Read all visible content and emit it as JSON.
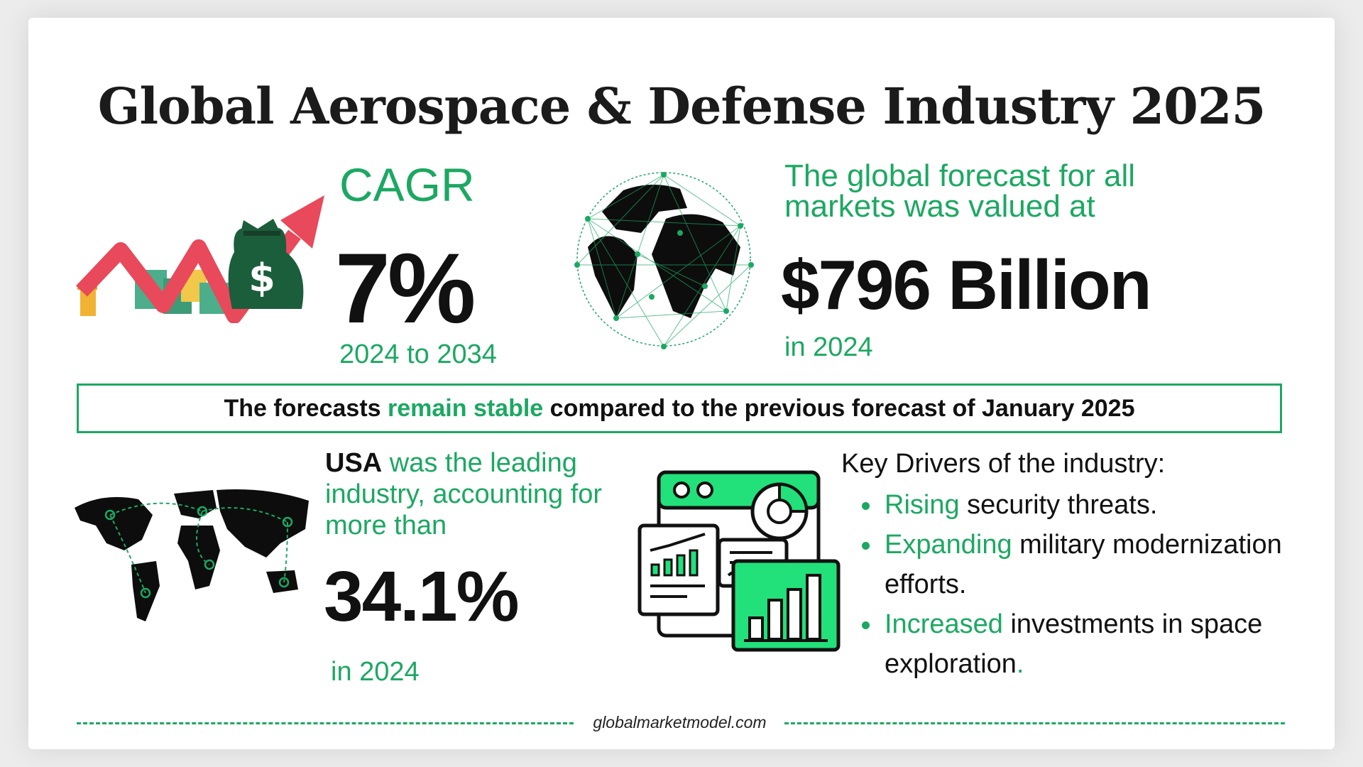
{
  "title": "Global Aerospace & Defense Industry 2025",
  "cagr": {
    "label": "CAGR",
    "value": "7%",
    "period": "2024 to 2034"
  },
  "market": {
    "text": "The global forecast for all markets was valued at",
    "value": "$796 Billion",
    "year": "in 2024"
  },
  "banner": {
    "prefix": "The forecasts ",
    "highlight": "remain stable",
    "suffix": " compared to the previous forecast of January 2025"
  },
  "usa": {
    "country": "USA",
    "text": " was the leading industry, accounting for more than",
    "value": "34.1%",
    "year": "in 2024"
  },
  "drivers": {
    "title": "Key Drivers of the industry:",
    "items": [
      {
        "highlight": "Rising",
        "rest": " security threats."
      },
      {
        "highlight": "Expanding",
        "rest": " military modernization efforts."
      },
      {
        "highlight": "Increased",
        "rest": " investments in space exploration",
        "end": "."
      }
    ]
  },
  "footer": {
    "site": "globalmarketmodel.com"
  },
  "colors": {
    "accent": "#1ca862",
    "text": "#111111",
    "arrow": "#e8495b",
    "money": "#1b5e3b"
  },
  "icons": [
    "growth-arrow-money-icon",
    "network-globe-icon",
    "world-map-icon",
    "analytics-dashboard-icon"
  ]
}
